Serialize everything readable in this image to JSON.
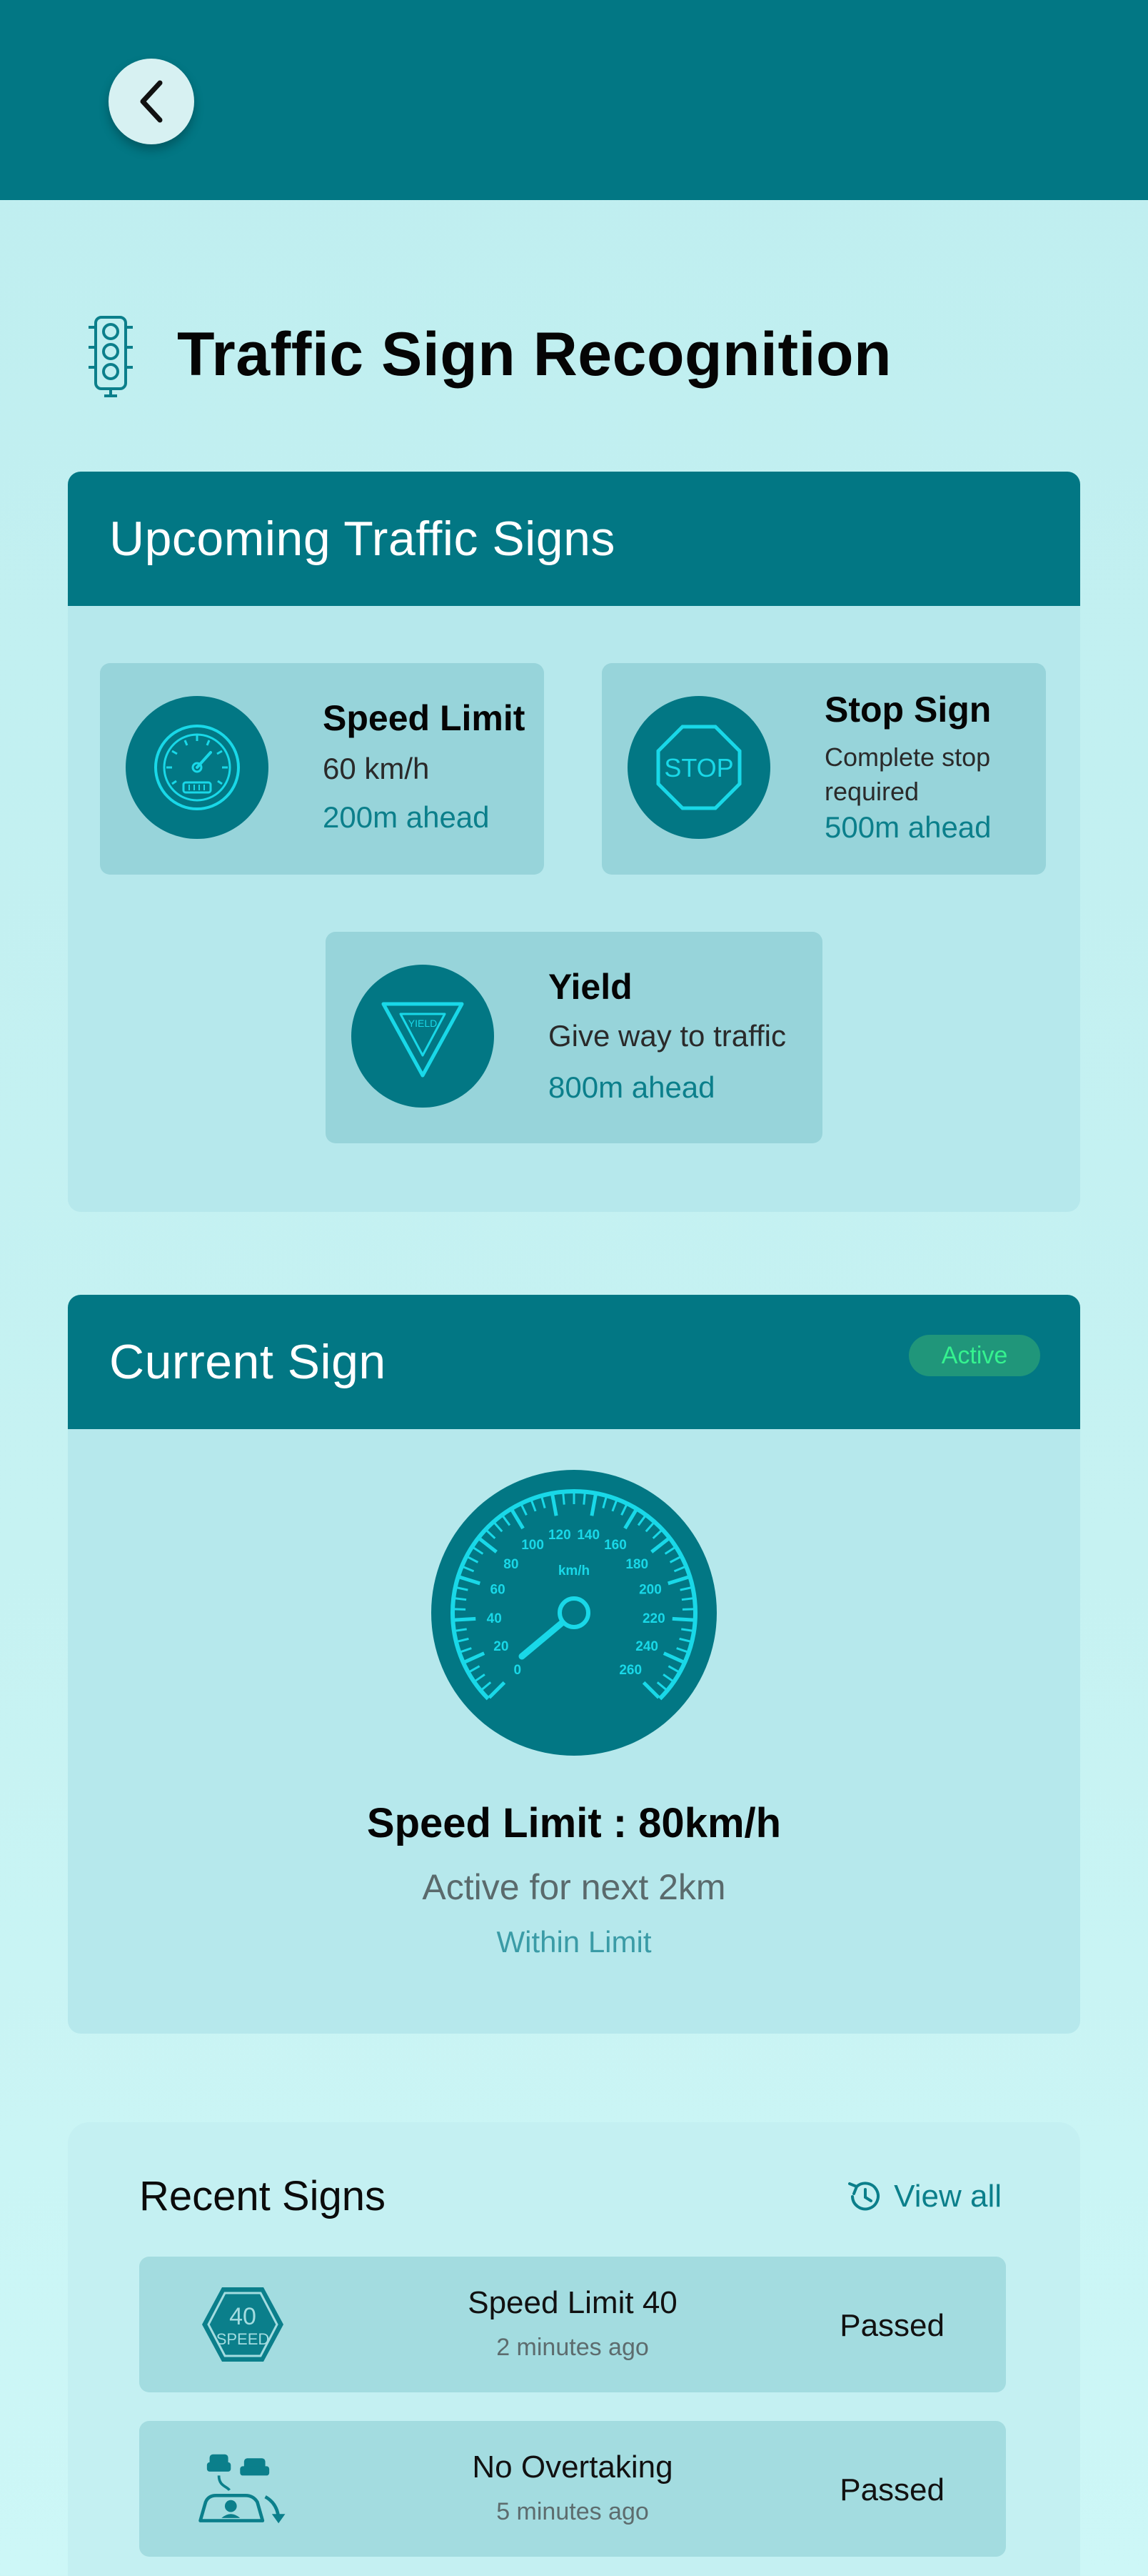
{
  "header": {
    "back_label": ""
  },
  "page": {
    "title": "Traffic Sign Recognition"
  },
  "upcoming": {
    "heading": "Upcoming Traffic Signs",
    "signs": [
      {
        "title": "Speed Limit",
        "description": "60 km/h",
        "distance": "200m ahead",
        "icon": "speedometer-icon"
      },
      {
        "title": "Stop Sign",
        "description": "Complete stop required",
        "distance": "500m ahead",
        "icon": "stop-sign-icon",
        "sign_text": "STOP"
      },
      {
        "title": "Yield",
        "description": "Give way to traffic",
        "distance": "800m ahead",
        "icon": "yield-sign-icon",
        "sign_text": "YIELD"
      }
    ]
  },
  "current": {
    "heading": "Current Sign",
    "badge": "Active",
    "gauge": {
      "unit": "km/h",
      "ticks": [
        "0",
        "20",
        "40",
        "60",
        "80",
        "100",
        "120",
        "140",
        "160",
        "180",
        "200",
        "220",
        "240",
        "260"
      ]
    },
    "title": "Speed Limit : 80km/h",
    "subtitle": "Active for next 2km",
    "status": "Within Limit"
  },
  "recent": {
    "heading": "Recent Signs",
    "view_all": "View all",
    "items": [
      {
        "title": "Speed Limit 40",
        "time": "2 minutes ago",
        "status": "Passed",
        "icon": "speed-40-sign-icon",
        "sign_number": "40",
        "sign_text": "SPEED"
      },
      {
        "title": "No Overtaking",
        "time": "5 minutes ago",
        "status": "Passed",
        "icon": "no-overtaking-icon"
      }
    ]
  },
  "colors": {
    "primary": "#027784",
    "accent_cyan": "#19d8e8",
    "tile_bg": "#97d4da",
    "badge_bg": "#20967a",
    "badge_text": "#35f28f"
  }
}
